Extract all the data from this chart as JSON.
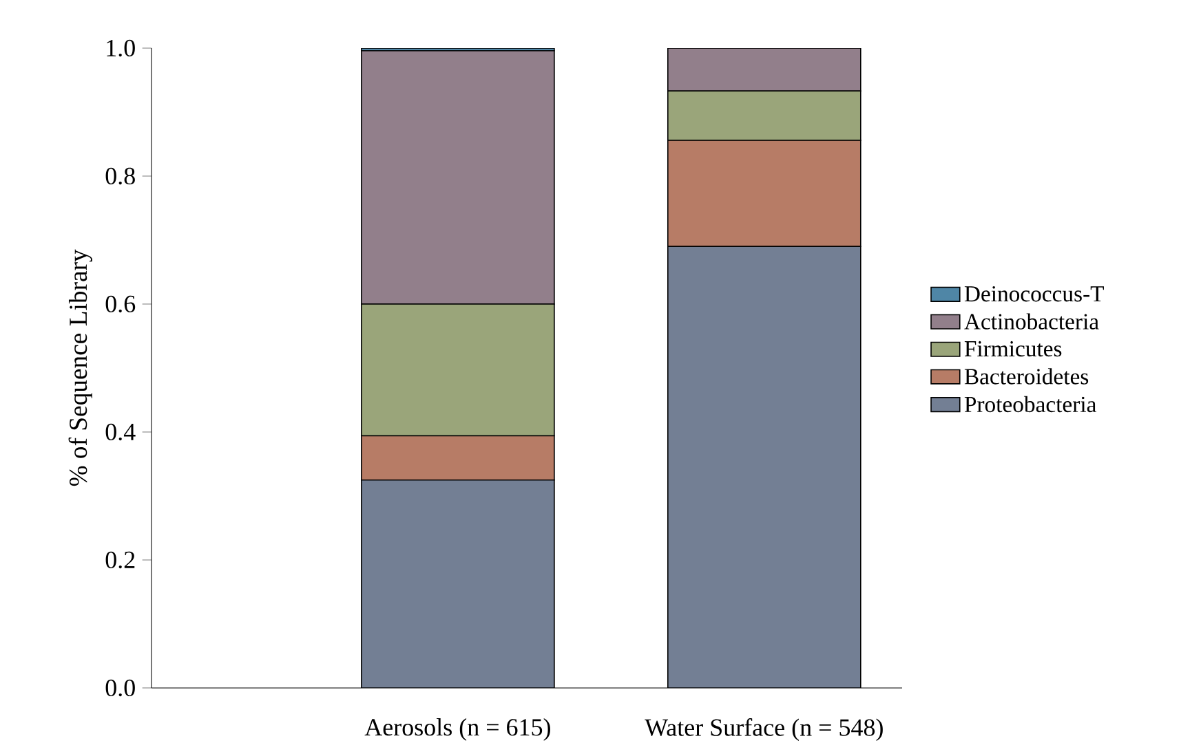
{
  "chart_data": {
    "type": "bar",
    "stacked": true,
    "ylabel": "% of Sequence Library",
    "categories": [
      "Aerosols (n = 615)",
      "Water Surface (n = 548)"
    ],
    "ylim": [
      0,
      1
    ],
    "yticks": [
      {
        "value": 0,
        "label": "0.0"
      },
      {
        "value": 0.2,
        "label": "0.2"
      },
      {
        "value": 0.4,
        "label": "0.4"
      },
      {
        "value": 0.6,
        "label": "0.6"
      },
      {
        "value": 0.8,
        "label": "0.8"
      },
      {
        "value": 1,
        "label": "1.0"
      }
    ],
    "legend": "right",
    "series": [
      {
        "name": "Proteobacteria",
        "color": "#737f94",
        "values": [
          0.325,
          0.69
        ]
      },
      {
        "name": "Bacteroidetes",
        "color": "#b77c66",
        "values": [
          0.069,
          0.166
        ]
      },
      {
        "name": "Firmicutes",
        "color": "#9aa57a",
        "values": [
          0.206,
          0.077
        ]
      },
      {
        "name": "Actinobacteria",
        "color": "#927f8b",
        "values": [
          0.396,
          0.067
        ]
      },
      {
        "name": "Deinococcus-T",
        "color": "#4f86a6",
        "values": [
          0.004,
          0
        ]
      }
    ]
  }
}
